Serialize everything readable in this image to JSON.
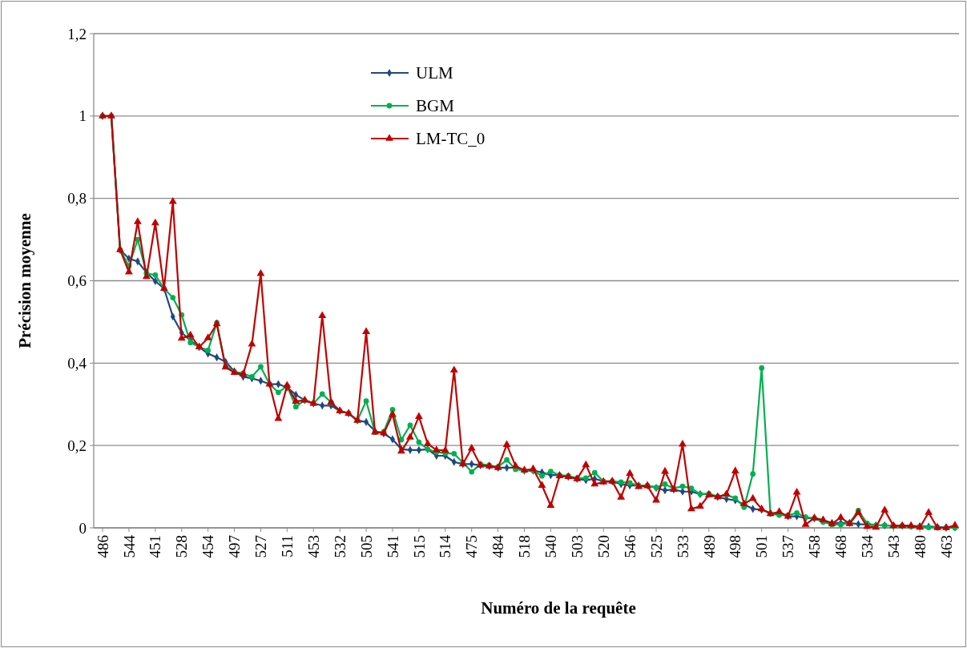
{
  "chart_data": {
    "type": "line",
    "xlabel": "Numéro de la requête",
    "ylabel": "Précision moyenne",
    "categories": [
      "486",
      null,
      null,
      "544",
      null,
      null,
      "451",
      null,
      null,
      "528",
      null,
      null,
      "454",
      null,
      null,
      "497",
      null,
      null,
      "527",
      null,
      null,
      "511",
      null,
      null,
      "453",
      null,
      null,
      "532",
      null,
      null,
      "505",
      null,
      null,
      "541",
      null,
      null,
      "515",
      null,
      null,
      "514",
      null,
      null,
      "475",
      null,
      null,
      "484",
      null,
      null,
      "518",
      null,
      null,
      "540",
      null,
      null,
      "503",
      null,
      null,
      "520",
      null,
      null,
      "546",
      null,
      null,
      "525",
      null,
      null,
      "533",
      null,
      null,
      "489",
      null,
      null,
      "498",
      null,
      null,
      "501",
      null,
      null,
      "537",
      null,
      null,
      "458",
      null,
      null,
      "468",
      null,
      null,
      "534",
      null,
      null,
      "543",
      null,
      null,
      "480",
      null,
      null,
      "463",
      null
    ],
    "ylim": [
      0,
      1.2
    ],
    "yticks": [
      {
        "value": 0,
        "label": "0"
      },
      {
        "value": 0.2,
        "label": "0,2"
      },
      {
        "value": 0.4,
        "label": "0,4"
      },
      {
        "value": 0.6,
        "label": "0,6"
      },
      {
        "value": 0.8,
        "label": "0,8"
      },
      {
        "value": 1,
        "label": "1"
      },
      {
        "value": 1.2,
        "label": "1,2"
      }
    ],
    "grid": "y",
    "legend": "top left",
    "line_style": "solid",
    "series": [
      {
        "name": "ULM",
        "color": "#1f497d",
        "marker": "diamond",
        "values": [
          1,
          1,
          0.675,
          0.654,
          0.647,
          0.62,
          0.599,
          0.581,
          0.513,
          0.474,
          0.455,
          0.439,
          0.423,
          0.414,
          0.403,
          0.38,
          0.367,
          0.363,
          0.357,
          0.349,
          0.349,
          0.341,
          0.323,
          0.31,
          0.302,
          0.297,
          0.297,
          0.284,
          0.278,
          0.261,
          0.257,
          0.235,
          0.229,
          0.215,
          0.191,
          0.189,
          0.189,
          0.191,
          0.175,
          0.175,
          0.16,
          0.155,
          0.155,
          0.152,
          0.15,
          0.146,
          0.146,
          0.146,
          0.139,
          0.139,
          0.135,
          0.128,
          0.128,
          0.124,
          0.119,
          0.116,
          0.119,
          0.113,
          0.113,
          0.106,
          0.103,
          0.103,
          0.103,
          0.097,
          0.091,
          0.093,
          0.088,
          0.088,
          0.082,
          0.082,
          0.075,
          0.07,
          0.067,
          0.057,
          0.046,
          0.044,
          0.036,
          0.034,
          0.028,
          0.028,
          0.024,
          0.023,
          0.019,
          0.012,
          0.012,
          0.012,
          0.009,
          0.008,
          0.006,
          0.006,
          0.005,
          0.005,
          0.005,
          0.004,
          0.003,
          0.002,
          0.001,
          0.001
        ]
      },
      {
        "name": "BGM",
        "color": "#00b050",
        "marker": "circle",
        "values": [
          1,
          1,
          0.675,
          0.636,
          0.7,
          0.618,
          0.614,
          0.581,
          0.559,
          0.517,
          0.45,
          0.439,
          0.431,
          0.498,
          0.392,
          0.379,
          0.375,
          0.367,
          0.391,
          0.349,
          0.329,
          0.344,
          0.294,
          0.31,
          0.302,
          0.325,
          0.305,
          0.284,
          0.278,
          0.261,
          0.308,
          0.232,
          0.233,
          0.287,
          0.214,
          0.249,
          0.208,
          0.191,
          0.184,
          0.181,
          0.18,
          0.159,
          0.136,
          0.155,
          0.152,
          0.148,
          0.165,
          0.142,
          0.139,
          0.139,
          0.126,
          0.137,
          0.128,
          0.126,
          0.121,
          0.121,
          0.134,
          0.113,
          0.113,
          0.111,
          0.109,
          0.103,
          0.103,
          0.098,
          0.106,
          0.096,
          0.101,
          0.096,
          0.082,
          0.083,
          0.076,
          0.08,
          0.072,
          0.05,
          0.131,
          0.388,
          0.034,
          0.031,
          0.031,
          0.036,
          0.026,
          0.023,
          0.014,
          0.008,
          0.008,
          0.012,
          0.042,
          0.011,
          0.006,
          0.006,
          0.005,
          0.005,
          0.003,
          0.003,
          0.001,
          0.001,
          0,
          0
        ]
      },
      {
        "name": "LM-TC_0",
        "color": "#c00000",
        "marker": "triangle",
        "values": [
          1,
          1,
          0.675,
          0.621,
          0.743,
          0.61,
          0.74,
          0.581,
          0.792,
          0.46,
          0.468,
          0.439,
          0.461,
          0.495,
          0.39,
          0.377,
          0.373,
          0.446,
          0.617,
          0.349,
          0.265,
          0.346,
          0.307,
          0.31,
          0.302,
          0.515,
          0.305,
          0.284,
          0.278,
          0.261,
          0.476,
          0.232,
          0.23,
          0.275,
          0.186,
          0.22,
          0.27,
          0.204,
          0.189,
          0.188,
          0.383,
          0.155,
          0.193,
          0.152,
          0.15,
          0.146,
          0.202,
          0.15,
          0.14,
          0.143,
          0.103,
          0.054,
          0.126,
          0.124,
          0.119,
          0.153,
          0.106,
          0.111,
          0.113,
          0.074,
          0.132,
          0.1,
          0.102,
          0.067,
          0.137,
          0.093,
          0.203,
          0.046,
          0.052,
          0.08,
          0.075,
          0.082,
          0.138,
          0.058,
          0.071,
          0.046,
          0.034,
          0.039,
          0.028,
          0.086,
          0.008,
          0.024,
          0.019,
          0.01,
          0.025,
          0.01,
          0.037,
          0.003,
          0.001,
          0.043,
          0.005,
          0.005,
          0.005,
          0.001,
          0.037,
          0,
          0,
          0.006
        ]
      }
    ]
  }
}
